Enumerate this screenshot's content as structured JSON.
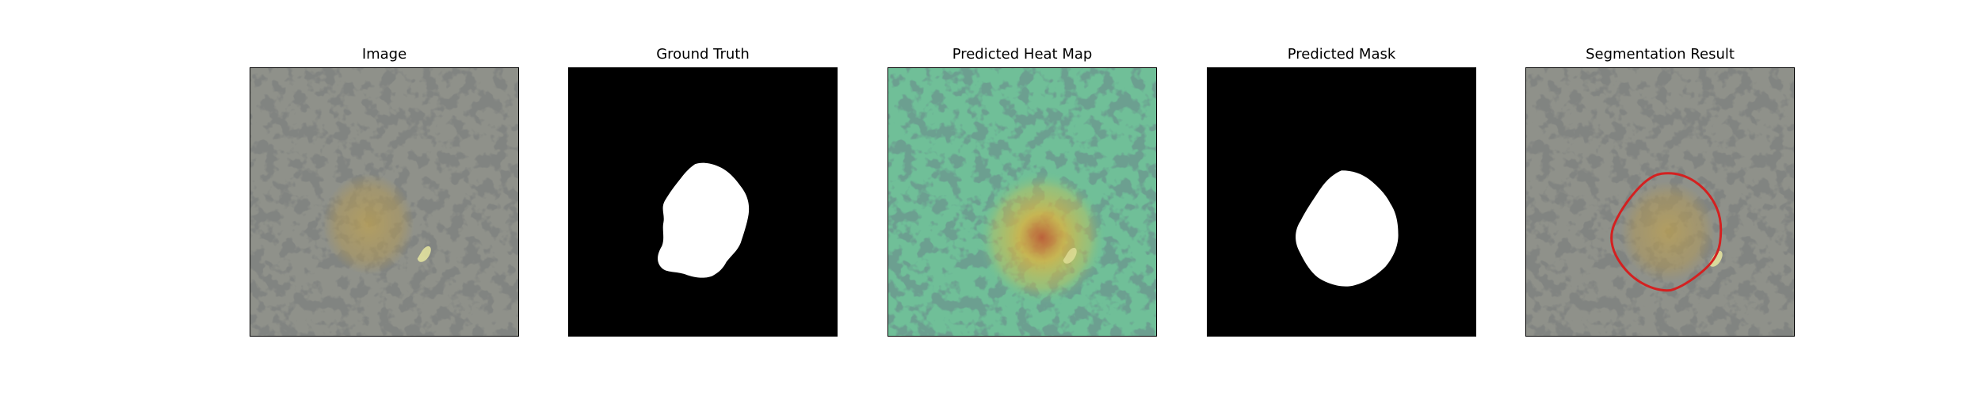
{
  "panels": [
    {
      "title": "Image"
    },
    {
      "title": "Ground Truth"
    },
    {
      "title": "Predicted Heat Map"
    },
    {
      "title": "Predicted Mask"
    },
    {
      "title": "Segmentation Result"
    }
  ],
  "colors": {
    "background": "#ffffff",
    "stone_base": "#8f918a",
    "stone_spot": "#3a3c39",
    "lesion_tint": "#b49a55",
    "mask_fg": "#ffffff",
    "mask_bg": "#000000",
    "heat_cool": "#5fc59a",
    "heat_warm": "#e3b23c",
    "heat_hot": "#c8502a",
    "contour": "#d42020"
  }
}
